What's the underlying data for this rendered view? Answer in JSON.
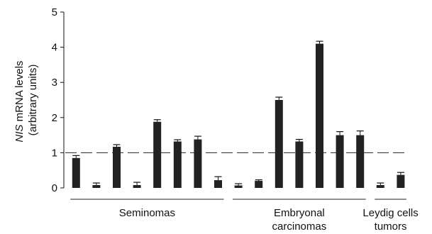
{
  "chart_data": {
    "type": "bar",
    "title": "",
    "xlabel": "",
    "ylabel": {
      "italic": "NIS",
      "rest": " mRNA levels",
      "line2": "(arbitrary units)"
    },
    "ylim": [
      0,
      5
    ],
    "yticks": [
      "0",
      "1",
      "2",
      "3",
      "4",
      "5"
    ],
    "reference_line": 1,
    "bar_color": "#222222",
    "values": [
      0.85,
      0.08,
      1.17,
      0.08,
      1.88,
      1.32,
      1.38,
      0.22,
      0.07,
      0.2,
      2.5,
      1.32,
      4.1,
      1.5,
      1.5,
      0.08,
      0.37
    ],
    "errors": [
      0.07,
      0.06,
      0.06,
      0.08,
      0.06,
      0.05,
      0.09,
      0.1,
      0.05,
      0.03,
      0.08,
      0.06,
      0.07,
      0.1,
      0.12,
      0.06,
      0.07
    ],
    "groups": [
      {
        "label": [
          "Seminomas"
        ],
        "start": 0,
        "end": 7
      },
      {
        "label": [
          "Embryonal",
          "carcinomas"
        ],
        "start": 8,
        "end": 14
      },
      {
        "label": [
          "Leydig cells",
          "tumors"
        ],
        "start": 15,
        "end": 16
      }
    ]
  }
}
